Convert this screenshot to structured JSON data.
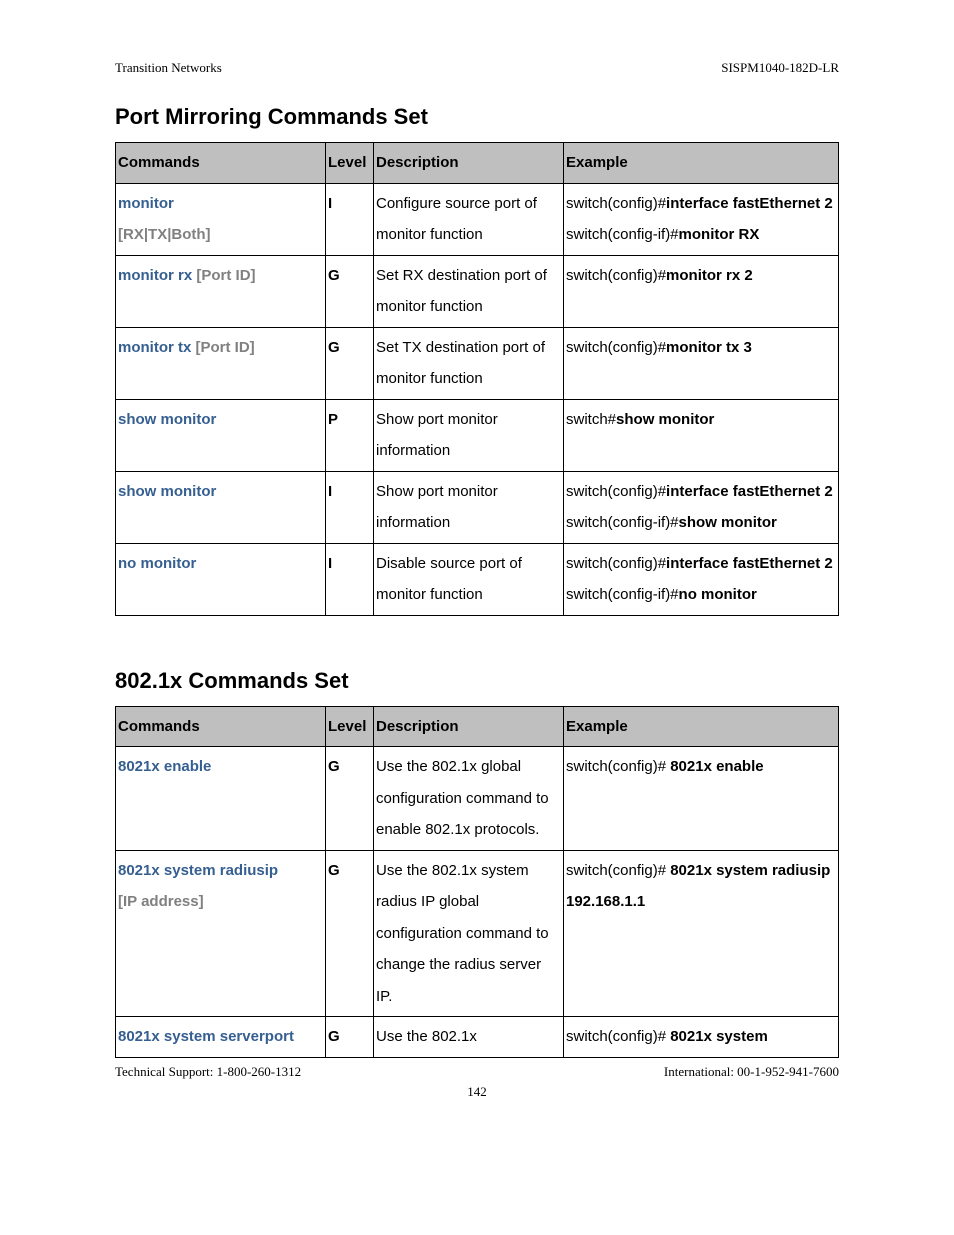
{
  "header": {
    "left": "Transition Networks",
    "right": "SISPM1040-182D-LR"
  },
  "section1": {
    "title": "Port Mirroring Commands Set",
    "columns": [
      "Commands",
      "Level",
      "Description",
      "Example"
    ],
    "rows": [
      {
        "command_parts": [
          {
            "text": "monitor",
            "cls": "cmd-blue"
          },
          {
            "br": true
          },
          {
            "text": "[RX|TX|Both]",
            "cls": "cmd-arg"
          }
        ],
        "level": "I",
        "description": "Configure source port of monitor function",
        "example_parts": [
          {
            "text": "switch(config)#",
            "cls": ""
          },
          {
            "text": "interface fastEthernet 2",
            "cls": "ex-bold"
          },
          {
            "br": true
          },
          {
            "text": "switch(config-if)#",
            "cls": ""
          },
          {
            "text": "monitor RX",
            "cls": "ex-bold"
          }
        ]
      },
      {
        "command_parts": [
          {
            "text": "monitor rx",
            "cls": "cmd-blue"
          },
          {
            "text": " ",
            "cls": ""
          },
          {
            "text": "[Port ID]",
            "cls": "cmd-arg"
          }
        ],
        "level": "G",
        "description": "Set RX destination port of monitor function",
        "example_parts": [
          {
            "text": "switch(config)#",
            "cls": ""
          },
          {
            "text": "monitor rx 2",
            "cls": "ex-bold"
          }
        ]
      },
      {
        "command_parts": [
          {
            "text": "monitor tx",
            "cls": "cmd-blue"
          },
          {
            "text": " ",
            "cls": ""
          },
          {
            "text": "[Port ID]",
            "cls": "cmd-arg"
          }
        ],
        "level": "G",
        "description": "Set TX destination port of monitor function",
        "example_parts": [
          {
            "text": "switch(config)#",
            "cls": ""
          },
          {
            "text": "monitor tx 3",
            "cls": "ex-bold"
          }
        ]
      },
      {
        "command_parts": [
          {
            "text": "show monitor",
            "cls": "cmd-blue"
          }
        ],
        "level": "P",
        "description": "Show port monitor information",
        "example_parts": [
          {
            "text": "switch#",
            "cls": ""
          },
          {
            "text": "show monitor",
            "cls": "ex-bold"
          }
        ]
      },
      {
        "command_parts": [
          {
            "text": "show monitor",
            "cls": "cmd-blue"
          }
        ],
        "level": "I",
        "description": "Show port monitor information",
        "example_parts": [
          {
            "text": "switch(config)#",
            "cls": ""
          },
          {
            "text": "interface fastEthernet 2",
            "cls": "ex-bold"
          },
          {
            "br": true
          },
          {
            "text": "switch(config-if)#",
            "cls": ""
          },
          {
            "text": "show monitor",
            "cls": "ex-bold"
          }
        ]
      },
      {
        "command_parts": [
          {
            "text": "no monitor",
            "cls": "cmd-blue"
          }
        ],
        "level": "I",
        "description": "Disable source port of monitor function",
        "example_parts": [
          {
            "text": "switch(config)#",
            "cls": ""
          },
          {
            "text": "interface fastEthernet 2",
            "cls": "ex-bold"
          },
          {
            "br": true
          },
          {
            "text": "switch(config-if)#",
            "cls": ""
          },
          {
            "text": "no monitor",
            "cls": "ex-bold"
          }
        ]
      }
    ]
  },
  "section2": {
    "title": "802.1x Commands Set",
    "columns": [
      "Commands",
      "Level",
      "Description",
      "Example"
    ],
    "rows": [
      {
        "command_parts": [
          {
            "text": "8021x enable",
            "cls": "cmd-blue"
          }
        ],
        "level": "G",
        "description": "Use the 802.1x global configuration command to enable 802.1x protocols.",
        "example_parts": [
          {
            "text": "switch(config)# ",
            "cls": ""
          },
          {
            "text": "8021x enable",
            "cls": "ex-bold"
          }
        ]
      },
      {
        "command_parts": [
          {
            "text": "8021x system radiusip",
            "cls": "cmd-blue"
          },
          {
            "br": true
          },
          {
            "text": "[IP address]",
            "cls": "cmd-arg"
          }
        ],
        "level": "G",
        "description": "Use the 802.1x system radius IP global configuration command to change the radius server IP.",
        "example_parts": [
          {
            "text": "switch(config)# ",
            "cls": ""
          },
          {
            "text": "8021x system radiusip 192.168.1.1",
            "cls": "ex-bold"
          }
        ]
      },
      {
        "command_parts": [
          {
            "text": "8021x system serverport",
            "cls": "cmd-blue"
          }
        ],
        "level": "G",
        "description": "Use the 802.1x",
        "example_parts": [
          {
            "text": "switch(config)# ",
            "cls": ""
          },
          {
            "text": "8021x system",
            "cls": "ex-bold"
          }
        ]
      }
    ]
  },
  "footer": {
    "left": "Technical Support: 1-800-260-1312",
    "right": "International: 00-1-952-941-7600",
    "page": "142"
  }
}
